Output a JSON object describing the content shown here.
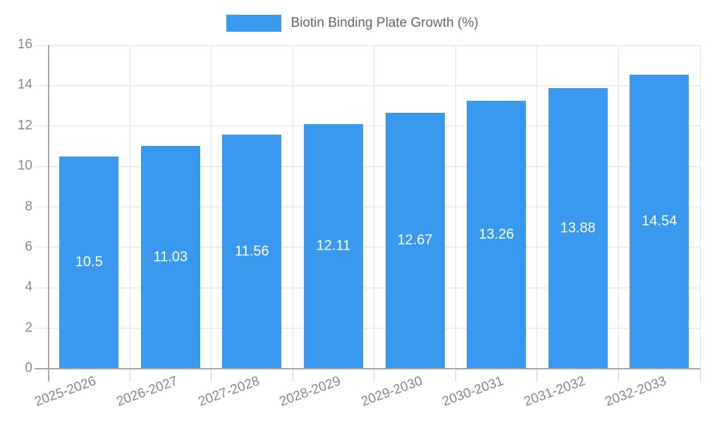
{
  "legend": {
    "items": [
      {
        "label": "Biotin Binding Plate Growth (%)",
        "color": "#3999ee"
      }
    ]
  },
  "colors": {
    "bar": "#3999ee",
    "grid": "#e2e2e2",
    "axis_tick": "#cdcdcd",
    "axis_line": "#a7a7a7",
    "tick_text": "#888888",
    "legend_text": "#666666",
    "value_text": "#ffffff",
    "background": "#ffffff"
  },
  "chart_data": {
    "type": "bar",
    "title": "Biotin Binding Plate Growth (%)",
    "categories": [
      "2025-2026",
      "2026-2027",
      "2027-2028",
      "2028-2029",
      "2029-2030",
      "2030-2031",
      "2031-2032",
      "2032-2033"
    ],
    "values": [
      10.5,
      11.03,
      11.56,
      12.11,
      12.67,
      13.26,
      13.88,
      14.54
    ],
    "value_labels": [
      "10.5",
      "11.03",
      "11.56",
      "12.11",
      "12.67",
      "13.26",
      "13.88",
      "14.54"
    ],
    "xlabel": "",
    "ylabel": "",
    "ylim": [
      0,
      16
    ],
    "yticks": [
      0,
      2,
      4,
      6,
      8,
      10,
      12,
      14,
      16
    ],
    "grid": true,
    "legend_position": "top-center",
    "value_label_position": "inside-middle",
    "x_tick_rotation_deg": -20
  }
}
